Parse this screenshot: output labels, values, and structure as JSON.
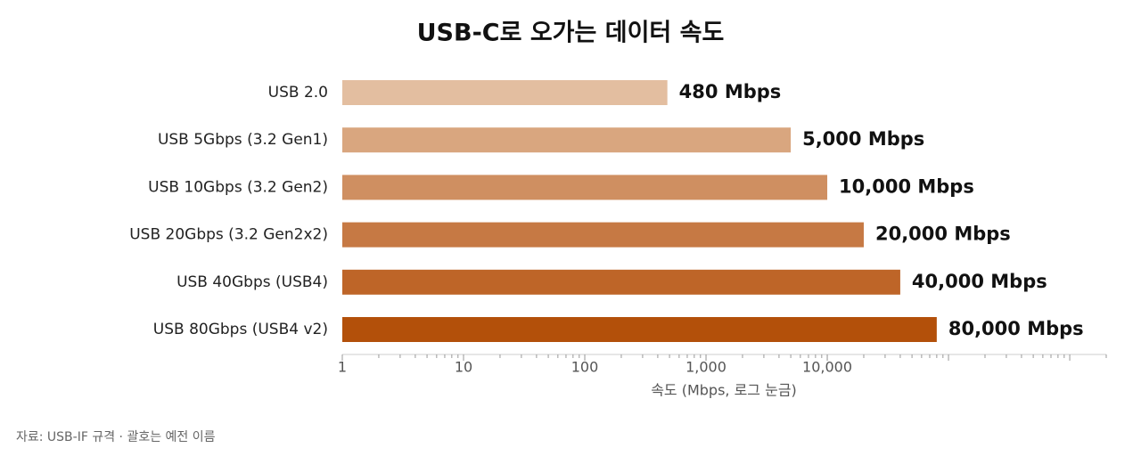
{
  "chart_data": {
    "type": "bar",
    "orientation": "horizontal",
    "log_scale": true,
    "title": "USB-C로 오가는 데이터 속도",
    "categories": [
      "USB 2.0",
      "USB 5Gbps (3.2 Gen1)",
      "USB 10Gbps (3.2 Gen2)",
      "USB 20Gbps (3.2 Gen2x2)",
      "USB 40Gbps (USB4)",
      "USB 80Gbps (USB4 v2)"
    ],
    "values": [
      480,
      5000,
      10000,
      20000,
      40000,
      80000
    ],
    "value_labels": [
      "480 Mbps",
      "5,000 Mbps",
      "10,000 Mbps",
      "20,000 Mbps",
      "40,000 Mbps",
      "80,000 Mbps"
    ],
    "colors": [
      "#e3bea0",
      "#d9a67f",
      "#cf8f61",
      "#c67944",
      "#be6528",
      "#b3500a"
    ],
    "xlim": [
      1,
      2000000
    ],
    "xticks": [
      1,
      10,
      100,
      {
        "value": 1000,
        "label": "1,000"
      },
      {
        "value": 10000,
        "label": "10,000"
      }
    ],
    "xlabel": "속도 (Mbps, 로그 눈금)",
    "source": "자료: USB-IF 규격 · 괄호는 예전 이름"
  }
}
